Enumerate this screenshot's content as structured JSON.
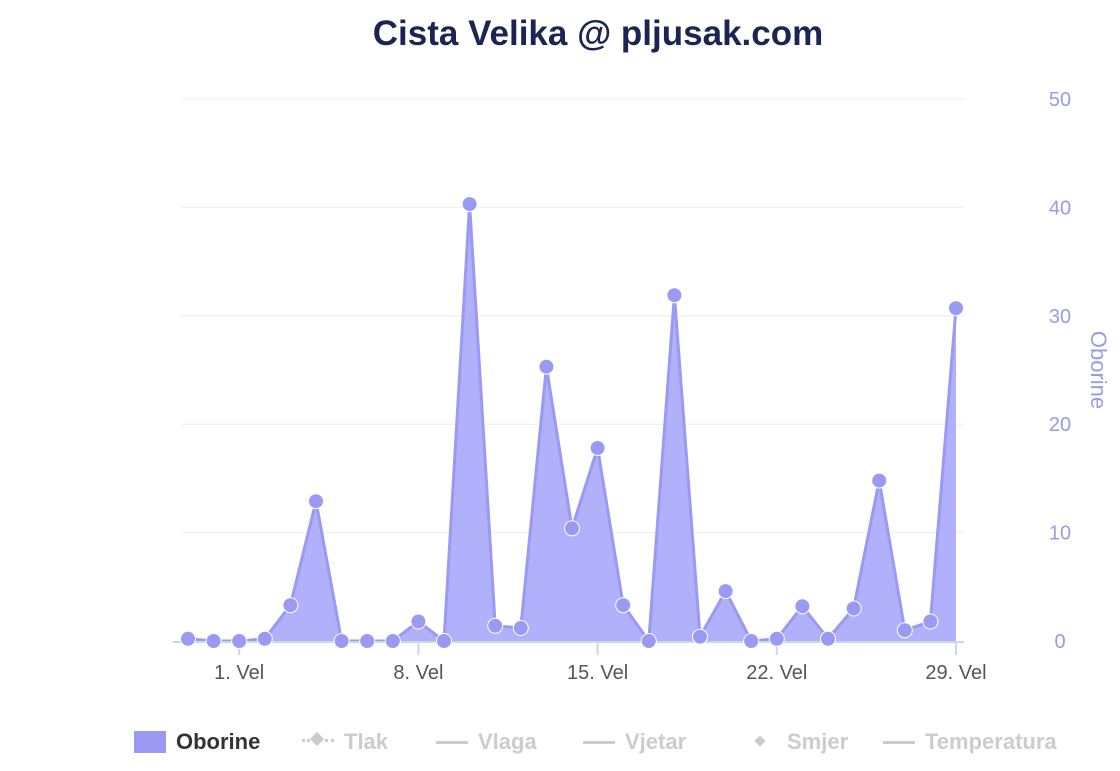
{
  "title": "Cista Velika @ pljusak.com",
  "colors": {
    "series": "#9a9af4",
    "series_fill": "#b0b0fb",
    "grid": "#eeeeee",
    "axis_text": "#9a9ae8",
    "inactive": "#cccccc"
  },
  "chart_data": {
    "type": "area",
    "title": "Cista Velika @ pljusak.com",
    "x_unit": "day of month",
    "x": [
      -1,
      0,
      1,
      2,
      3,
      4,
      5,
      6,
      7,
      8,
      9,
      10,
      11,
      12,
      13,
      14,
      15,
      16,
      17,
      18,
      19,
      20,
      21,
      22,
      23,
      24,
      25,
      26,
      27,
      28,
      29
    ],
    "series": [
      {
        "name": "Oborine",
        "values": [
          0.2,
          0,
          0,
          0.2,
          3.3,
          12.9,
          0,
          0,
          0,
          1.8,
          0,
          40.3,
          1.4,
          1.2,
          25.3,
          10.4,
          17.8,
          3.3,
          0,
          31.9,
          0.4,
          4.6,
          0,
          0.2,
          3.2,
          0.2,
          3.0,
          14.8,
          1.0,
          1.8,
          30.7
        ]
      }
    ],
    "x_ticks": [
      {
        "value": 1,
        "label": "1. Vel"
      },
      {
        "value": 8,
        "label": "8. Vel"
      },
      {
        "value": 15,
        "label": "15. Vel"
      },
      {
        "value": 22,
        "label": "22. Vel"
      },
      {
        "value": 29,
        "label": "29. Vel"
      }
    ],
    "y_axis": {
      "label": "Oborine",
      "position": "right",
      "ticks": [
        "0",
        "10",
        "20",
        "30",
        "40",
        "50"
      ],
      "ylim": [
        0,
        50
      ]
    },
    "grid": true,
    "legend_position": "bottom"
  },
  "legend": [
    {
      "label": "Oborine",
      "symbol": "area",
      "active": true
    },
    {
      "label": "Tlak",
      "symbol": "line-diamond",
      "active": false
    },
    {
      "label": "Vlaga",
      "symbol": "line",
      "active": false
    },
    {
      "label": "Vjetar",
      "symbol": "line",
      "active": false
    },
    {
      "label": "Smjer",
      "symbol": "diamond",
      "active": false
    },
    {
      "label": "Temperatura",
      "symbol": "line",
      "active": false
    }
  ]
}
